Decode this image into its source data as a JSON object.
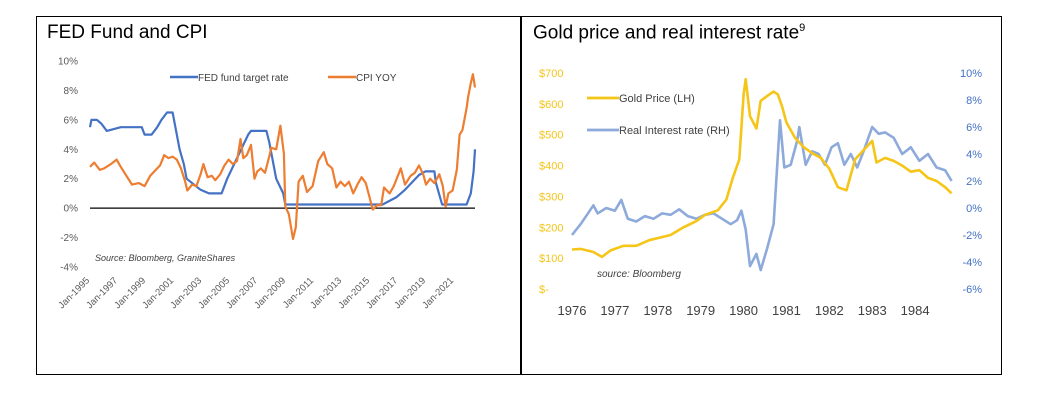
{
  "panels": {
    "left_title": "FED Fund and CPI",
    "right_title": "Gold price and real interest rate",
    "right_title_sup": "9"
  },
  "chart_data": [
    {
      "type": "line",
      "title": "FED Fund and CPI",
      "source": "Source: Bloomberg, GraniteShares",
      "ylim": [
        -4,
        10
      ],
      "y_tick_labels": [
        "10%",
        "8%",
        "6%",
        "4%",
        "2%",
        "0%",
        "-2%",
        "-4%"
      ],
      "x_tick_labels": [
        "Jan-1995",
        "Jan-1997",
        "Jan-1999",
        "Jan-2001",
        "Jan-2003",
        "Jan-2005",
        "Jan-2007",
        "Jan-2009",
        "Jan-2011",
        "Jan-2013",
        "Jan-2015",
        "Jan-2017",
        "Jan-2019",
        "Jan-2021"
      ],
      "xlim": [
        1995,
        2022.5
      ],
      "legend_position": "top",
      "series": [
        {
          "name": "FED fund target rate",
          "color": "#4472c4",
          "points": [
            [
              1995.0,
              5.5
            ],
            [
              1995.1,
              6.0
            ],
            [
              1995.5,
              6.0
            ],
            [
              1995.8,
              5.75
            ],
            [
              1996.0,
              5.5
            ],
            [
              1996.2,
              5.25
            ],
            [
              1997.2,
              5.5
            ],
            [
              1998.7,
              5.5
            ],
            [
              1998.9,
              5.0
            ],
            [
              1999.4,
              5.0
            ],
            [
              1999.8,
              5.5
            ],
            [
              2000.1,
              6.0
            ],
            [
              2000.5,
              6.5
            ],
            [
              2000.9,
              6.5
            ],
            [
              2001.1,
              5.5
            ],
            [
              2001.4,
              4.0
            ],
            [
              2001.7,
              3.0
            ],
            [
              2001.9,
              2.0
            ],
            [
              2002.9,
              1.25
            ],
            [
              2003.5,
              1.0
            ],
            [
              2004.4,
              1.0
            ],
            [
              2004.8,
              2.0
            ],
            [
              2005.3,
              3.0
            ],
            [
              2005.8,
              4.0
            ],
            [
              2006.3,
              5.0
            ],
            [
              2006.5,
              5.25
            ],
            [
              2007.6,
              5.25
            ],
            [
              2007.8,
              4.5
            ],
            [
              2008.1,
              3.0
            ],
            [
              2008.3,
              2.0
            ],
            [
              2008.8,
              1.0
            ],
            [
              2008.95,
              0.25
            ],
            [
              2015.9,
              0.25
            ],
            [
              2016.9,
              0.75
            ],
            [
              2017.5,
              1.25
            ],
            [
              2018.0,
              1.75
            ],
            [
              2018.5,
              2.25
            ],
            [
              2018.95,
              2.5
            ],
            [
              2019.6,
              2.5
            ],
            [
              2019.7,
              1.75
            ],
            [
              2020.15,
              0.25
            ],
            [
              2021.9,
              0.25
            ],
            [
              2022.2,
              1.0
            ],
            [
              2022.4,
              2.5
            ],
            [
              2022.5,
              4.0
            ]
          ]
        },
        {
          "name": "CPI YOY",
          "color": "#ed7d31",
          "points": [
            [
              1995.0,
              2.8
            ],
            [
              1995.3,
              3.1
            ],
            [
              1995.7,
              2.6
            ],
            [
              1996.0,
              2.7
            ],
            [
              1996.5,
              3.0
            ],
            [
              1996.9,
              3.3
            ],
            [
              1997.2,
              2.8
            ],
            [
              1997.6,
              2.2
            ],
            [
              1998.0,
              1.6
            ],
            [
              1998.5,
              1.7
            ],
            [
              1998.9,
              1.5
            ],
            [
              1999.3,
              2.2
            ],
            [
              1999.7,
              2.6
            ],
            [
              2000.0,
              2.9
            ],
            [
              2000.3,
              3.6
            ],
            [
              2000.6,
              3.4
            ],
            [
              2000.9,
              3.5
            ],
            [
              2001.2,
              3.3
            ],
            [
              2001.5,
              2.7
            ],
            [
              2001.8,
              1.8
            ],
            [
              2001.95,
              1.2
            ],
            [
              2002.3,
              1.6
            ],
            [
              2002.6,
              1.5
            ],
            [
              2002.9,
              2.3
            ],
            [
              2003.1,
              3.0
            ],
            [
              2003.4,
              2.1
            ],
            [
              2003.7,
              2.2
            ],
            [
              2003.95,
              1.9
            ],
            [
              2004.3,
              2.3
            ],
            [
              2004.6,
              2.9
            ],
            [
              2004.9,
              3.3
            ],
            [
              2005.2,
              3.0
            ],
            [
              2005.5,
              3.2
            ],
            [
              2005.75,
              4.7
            ],
            [
              2005.95,
              3.4
            ],
            [
              2006.2,
              3.6
            ],
            [
              2006.5,
              4.3
            ],
            [
              2006.75,
              2.0
            ],
            [
              2006.95,
              2.5
            ],
            [
              2007.2,
              2.7
            ],
            [
              2007.5,
              2.4
            ],
            [
              2007.8,
              3.5
            ],
            [
              2007.95,
              4.1
            ],
            [
              2008.3,
              4.0
            ],
            [
              2008.6,
              5.6
            ],
            [
              2008.85,
              3.7
            ],
            [
              2008.95,
              0.1
            ],
            [
              2009.2,
              -0.4
            ],
            [
              2009.5,
              -2.1
            ],
            [
              2009.7,
              -1.3
            ],
            [
              2009.9,
              1.8
            ],
            [
              2010.2,
              2.2
            ],
            [
              2010.5,
              1.1
            ],
            [
              2010.9,
              1.5
            ],
            [
              2011.3,
              3.2
            ],
            [
              2011.7,
              3.8
            ],
            [
              2011.95,
              3.0
            ],
            [
              2012.3,
              2.7
            ],
            [
              2012.6,
              1.4
            ],
            [
              2012.9,
              1.8
            ],
            [
              2013.2,
              1.5
            ],
            [
              2013.5,
              1.8
            ],
            [
              2013.8,
              1.0
            ],
            [
              2014.1,
              1.6
            ],
            [
              2014.4,
              2.1
            ],
            [
              2014.7,
              1.7
            ],
            [
              2014.95,
              0.8
            ],
            [
              2015.2,
              -0.1
            ],
            [
              2015.5,
              0.2
            ],
            [
              2015.8,
              0.2
            ],
            [
              2016.0,
              1.4
            ],
            [
              2016.4,
              1.0
            ],
            [
              2016.7,
              1.5
            ],
            [
              2016.95,
              2.1
            ],
            [
              2017.2,
              2.7
            ],
            [
              2017.5,
              1.6
            ],
            [
              2017.9,
              2.2
            ],
            [
              2018.2,
              2.4
            ],
            [
              2018.5,
              2.9
            ],
            [
              2018.8,
              2.3
            ],
            [
              2019.0,
              1.6
            ],
            [
              2019.3,
              2.0
            ],
            [
              2019.6,
              1.7
            ],
            [
              2019.95,
              2.3
            ],
            [
              2020.2,
              1.5
            ],
            [
              2020.4,
              0.1
            ],
            [
              2020.6,
              1.0
            ],
            [
              2020.9,
              1.2
            ],
            [
              2021.2,
              2.6
            ],
            [
              2021.4,
              5.0
            ],
            [
              2021.6,
              5.3
            ],
            [
              2021.9,
              6.8
            ],
            [
              2022.0,
              7.5
            ],
            [
              2022.2,
              8.5
            ],
            [
              2022.35,
              9.1
            ],
            [
              2022.45,
              8.5
            ],
            [
              2022.5,
              8.2
            ]
          ]
        }
      ]
    },
    {
      "type": "line",
      "title": "Gold price and real interest rate",
      "source": "source: Bloomberg",
      "x_tick_labels": [
        "1976",
        "1977",
        "1978",
        "1979",
        "1980",
        "1981",
        "1982",
        "1983",
        "1984"
      ],
      "xlim": [
        1976,
        1985
      ],
      "y_left_tick_labels": [
        "$700",
        "$600",
        "$500",
        "$400",
        "$300",
        "$200",
        "$100",
        "$-"
      ],
      "y_left_lim": [
        0,
        700
      ],
      "y_right_tick_labels": [
        "10%",
        "8%",
        "6%",
        "4%",
        "2%",
        "0%",
        "-2%",
        "-4%",
        "-6%"
      ],
      "y_right_lim": [
        -6,
        10
      ],
      "legend_position": "top-left",
      "series": [
        {
          "name": "Gold Price  (LH)",
          "axis": "left",
          "color": "#f5c518",
          "points": [
            [
              1976.0,
              128
            ],
            [
              1976.2,
              130
            ],
            [
              1976.5,
              120
            ],
            [
              1976.7,
              104
            ],
            [
              1976.9,
              125
            ],
            [
              1977.2,
              140
            ],
            [
              1977.5,
              140
            ],
            [
              1977.8,
              158
            ],
            [
              1978.0,
              165
            ],
            [
              1978.3,
              175
            ],
            [
              1978.6,
              200
            ],
            [
              1978.9,
              220
            ],
            [
              1979.1,
              240
            ],
            [
              1979.4,
              255
            ],
            [
              1979.6,
              290
            ],
            [
              1979.75,
              360
            ],
            [
              1979.9,
              420
            ],
            [
              1980.0,
              630
            ],
            [
              1980.05,
              680
            ],
            [
              1980.15,
              560
            ],
            [
              1980.3,
              520
            ],
            [
              1980.4,
              610
            ],
            [
              1980.55,
              625
            ],
            [
              1980.7,
              640
            ],
            [
              1980.8,
              630
            ],
            [
              1980.9,
              590
            ],
            [
              1981.0,
              540
            ],
            [
              1981.2,
              490
            ],
            [
              1981.4,
              460
            ],
            [
              1981.6,
              440
            ],
            [
              1981.8,
              425
            ],
            [
              1982.0,
              390
            ],
            [
              1982.2,
              330
            ],
            [
              1982.4,
              320
            ],
            [
              1982.6,
              420
            ],
            [
              1982.8,
              450
            ],
            [
              1983.0,
              480
            ],
            [
              1983.1,
              410
            ],
            [
              1983.3,
              425
            ],
            [
              1983.5,
              415
            ],
            [
              1983.7,
              400
            ],
            [
              1983.9,
              380
            ],
            [
              1984.1,
              385
            ],
            [
              1984.3,
              360
            ],
            [
              1984.5,
              350
            ],
            [
              1984.7,
              330
            ],
            [
              1984.85,
              310
            ]
          ]
        },
        {
          "name": "Real Interest rate (RH)",
          "axis": "right",
          "color": "#8eaadb",
          "points": [
            [
              1976.0,
              -2.0
            ],
            [
              1976.2,
              -1.2
            ],
            [
              1976.35,
              -0.5
            ],
            [
              1976.5,
              0.2
            ],
            [
              1976.6,
              -0.4
            ],
            [
              1976.8,
              0.0
            ],
            [
              1977.0,
              -0.2
            ],
            [
              1977.15,
              0.6
            ],
            [
              1977.3,
              -0.8
            ],
            [
              1977.5,
              -1.0
            ],
            [
              1977.7,
              -0.6
            ],
            [
              1977.9,
              -0.8
            ],
            [
              1978.1,
              -0.4
            ],
            [
              1978.3,
              -0.5
            ],
            [
              1978.5,
              -0.1
            ],
            [
              1978.7,
              -0.6
            ],
            [
              1978.9,
              -0.8
            ],
            [
              1979.1,
              -0.5
            ],
            [
              1979.3,
              -0.4
            ],
            [
              1979.5,
              -0.8
            ],
            [
              1979.7,
              -1.2
            ],
            [
              1979.85,
              -0.9
            ],
            [
              1979.95,
              -0.2
            ],
            [
              1980.05,
              -1.6
            ],
            [
              1980.15,
              -4.3
            ],
            [
              1980.3,
              -3.4
            ],
            [
              1980.4,
              -4.6
            ],
            [
              1980.55,
              -3.0
            ],
            [
              1980.7,
              -1.2
            ],
            [
              1980.85,
              6.5
            ],
            [
              1980.95,
              3.0
            ],
            [
              1981.1,
              3.2
            ],
            [
              1981.25,
              5.0
            ],
            [
              1981.3,
              6.0
            ],
            [
              1981.45,
              3.2
            ],
            [
              1981.6,
              4.2
            ],
            [
              1981.75,
              4.0
            ],
            [
              1981.9,
              3.2
            ],
            [
              1982.05,
              4.5
            ],
            [
              1982.2,
              4.8
            ],
            [
              1982.35,
              3.2
            ],
            [
              1982.5,
              4.0
            ],
            [
              1982.65,
              3.0
            ],
            [
              1982.8,
              4.2
            ],
            [
              1983.0,
              6.0
            ],
            [
              1983.15,
              5.5
            ],
            [
              1983.3,
              5.6
            ],
            [
              1983.5,
              5.2
            ],
            [
              1983.7,
              4.0
            ],
            [
              1983.9,
              4.5
            ],
            [
              1984.1,
              3.5
            ],
            [
              1984.3,
              4.0
            ],
            [
              1984.5,
              3.0
            ],
            [
              1984.7,
              2.8
            ],
            [
              1984.85,
              2.0
            ]
          ]
        }
      ]
    }
  ]
}
